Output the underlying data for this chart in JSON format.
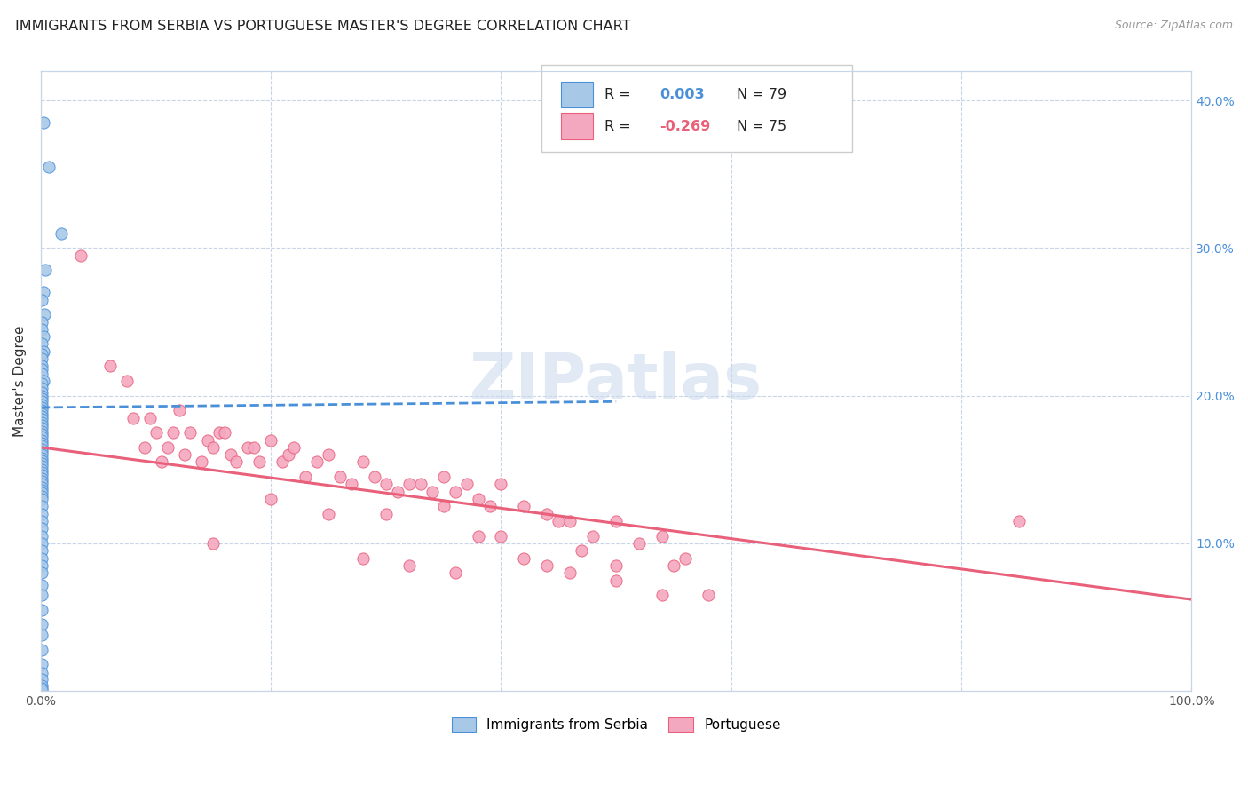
{
  "title": "IMMIGRANTS FROM SERBIA VS PORTUGUESE MASTER'S DEGREE CORRELATION CHART",
  "source": "Source: ZipAtlas.com",
  "ylabel": "Master's Degree",
  "legend_serbia": "Immigrants from Serbia",
  "legend_portuguese": "Portuguese",
  "serbia_color": "#a8c8e8",
  "portuguese_color": "#f4a8c0",
  "trendline_serbia_color": "#4a90d9",
  "trendline_portuguese_color": "#e8607a",
  "right_axis_color": "#4a90d9",
  "background_color": "#ffffff",
  "grid_color": "#c8d4e8",
  "xlim": [
    0.0,
    1.0
  ],
  "ylim": [
    0.0,
    0.42
  ],
  "right_yticks": [
    0.0,
    0.1,
    0.2,
    0.3,
    0.4
  ],
  "right_yticklabels": [
    "",
    "10.0%",
    "20.0%",
    "30.0%",
    "40.0%"
  ],
  "watermark": "ZIPatlas",
  "title_fontsize": 11.5,
  "label_fontsize": 11,
  "trendline_serbia_y0": 0.192,
  "trendline_serbia_y1": 0.196,
  "trendline_portuguese_y0": 0.165,
  "trendline_portuguese_y1": 0.062,
  "serbia_x": [
    0.002,
    0.007,
    0.018,
    0.004,
    0.002,
    0.001,
    0.003,
    0.001,
    0.001,
    0.002,
    0.001,
    0.002,
    0.001,
    0.001,
    0.001,
    0.001,
    0.001,
    0.002,
    0.001,
    0.001,
    0.001,
    0.001,
    0.001,
    0.001,
    0.001,
    0.001,
    0.001,
    0.001,
    0.001,
    0.001,
    0.001,
    0.001,
    0.001,
    0.001,
    0.001,
    0.001,
    0.001,
    0.001,
    0.001,
    0.001,
    0.001,
    0.001,
    0.001,
    0.001,
    0.001,
    0.001,
    0.001,
    0.001,
    0.001,
    0.001,
    0.001,
    0.001,
    0.001,
    0.001,
    0.001,
    0.001,
    0.001,
    0.001,
    0.001,
    0.001,
    0.001,
    0.001,
    0.001,
    0.001,
    0.001,
    0.001,
    0.001,
    0.001,
    0.001,
    0.001,
    0.001,
    0.001,
    0.001,
    0.001,
    0.001,
    0.001,
    0.001,
    0.001,
    0.001
  ],
  "serbia_y": [
    0.385,
    0.355,
    0.31,
    0.285,
    0.27,
    0.265,
    0.255,
    0.25,
    0.245,
    0.24,
    0.235,
    0.23,
    0.228,
    0.225,
    0.22,
    0.218,
    0.215,
    0.21,
    0.208,
    0.205,
    0.202,
    0.2,
    0.198,
    0.196,
    0.194,
    0.192,
    0.19,
    0.188,
    0.186,
    0.184,
    0.182,
    0.18,
    0.178,
    0.176,
    0.174,
    0.172,
    0.17,
    0.168,
    0.166,
    0.164,
    0.162,
    0.16,
    0.158,
    0.156,
    0.154,
    0.152,
    0.15,
    0.148,
    0.146,
    0.144,
    0.142,
    0.14,
    0.138,
    0.136,
    0.134,
    0.132,
    0.13,
    0.125,
    0.12,
    0.115,
    0.11,
    0.105,
    0.1,
    0.095,
    0.09,
    0.085,
    0.08,
    0.072,
    0.065,
    0.055,
    0.045,
    0.038,
    0.028,
    0.018,
    0.012,
    0.008,
    0.004,
    0.002,
    0.001
  ],
  "portuguese_x": [
    0.035,
    0.06,
    0.075,
    0.08,
    0.09,
    0.095,
    0.1,
    0.105,
    0.11,
    0.115,
    0.12,
    0.125,
    0.13,
    0.14,
    0.145,
    0.15,
    0.155,
    0.16,
    0.165,
    0.17,
    0.18,
    0.185,
    0.19,
    0.2,
    0.21,
    0.215,
    0.22,
    0.23,
    0.24,
    0.25,
    0.26,
    0.27,
    0.28,
    0.29,
    0.3,
    0.31,
    0.32,
    0.33,
    0.34,
    0.35,
    0.36,
    0.37,
    0.38,
    0.39,
    0.4,
    0.42,
    0.44,
    0.46,
    0.48,
    0.5,
    0.52,
    0.54,
    0.56,
    0.4,
    0.35,
    0.3,
    0.25,
    0.2,
    0.15,
    0.45,
    0.5,
    0.55,
    0.38,
    0.42,
    0.47,
    0.85,
    0.28,
    0.32,
    0.36,
    0.44,
    0.46,
    0.5,
    0.54,
    0.58
  ],
  "portuguese_y": [
    0.295,
    0.22,
    0.21,
    0.185,
    0.165,
    0.185,
    0.175,
    0.155,
    0.165,
    0.175,
    0.19,
    0.16,
    0.175,
    0.155,
    0.17,
    0.165,
    0.175,
    0.175,
    0.16,
    0.155,
    0.165,
    0.165,
    0.155,
    0.17,
    0.155,
    0.16,
    0.165,
    0.145,
    0.155,
    0.16,
    0.145,
    0.14,
    0.155,
    0.145,
    0.14,
    0.135,
    0.14,
    0.14,
    0.135,
    0.145,
    0.135,
    0.14,
    0.13,
    0.125,
    0.14,
    0.125,
    0.12,
    0.115,
    0.105,
    0.115,
    0.1,
    0.105,
    0.09,
    0.105,
    0.125,
    0.12,
    0.12,
    0.13,
    0.1,
    0.115,
    0.085,
    0.085,
    0.105,
    0.09,
    0.095,
    0.115,
    0.09,
    0.085,
    0.08,
    0.085,
    0.08,
    0.075,
    0.065,
    0.065
  ]
}
